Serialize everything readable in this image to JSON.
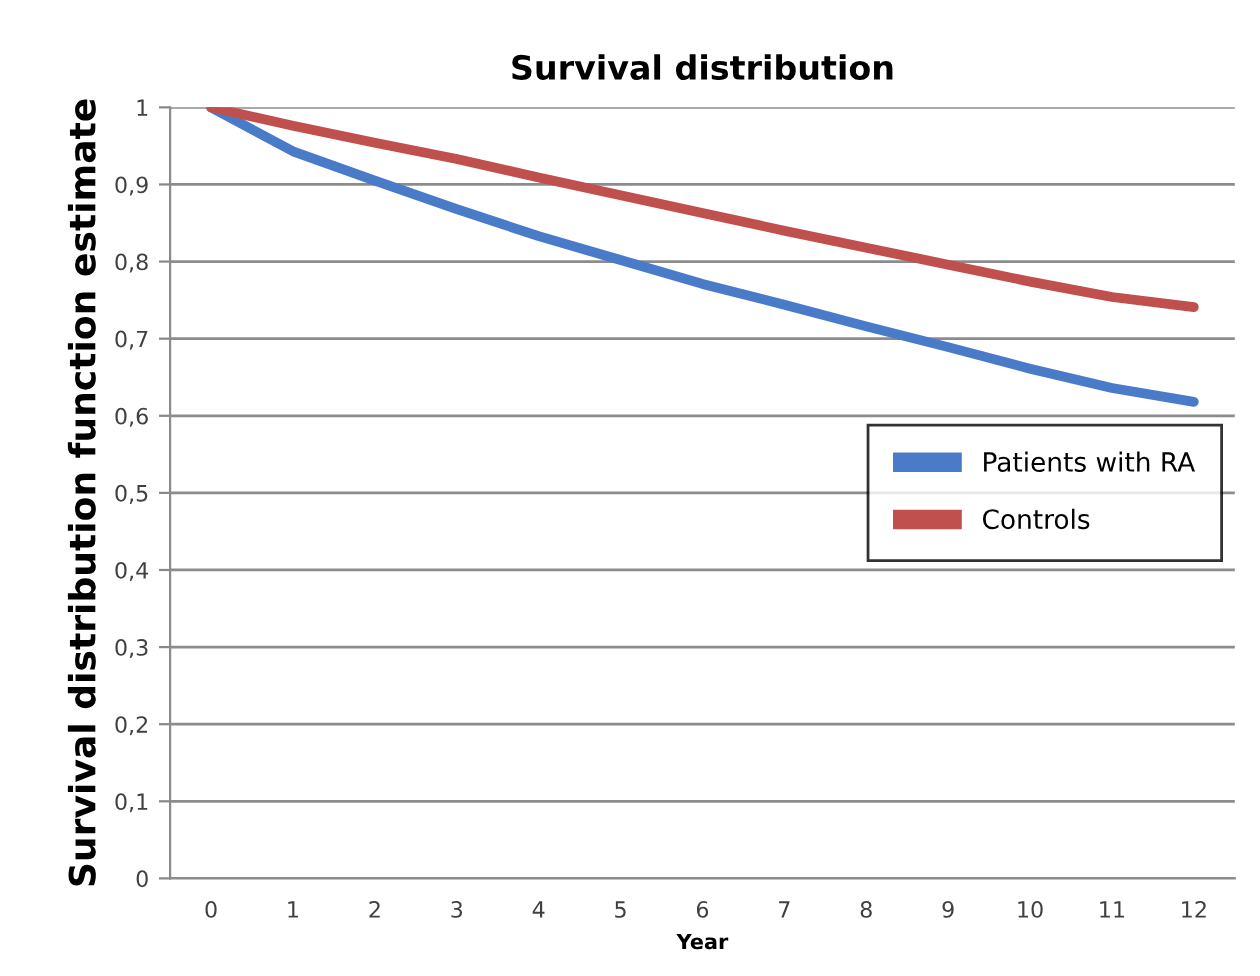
{
  "chart_data": {
    "type": "line",
    "title": "Survival distribution",
    "xlabel": "Year",
    "ylabel": "Survival distribution function estimate",
    "categories": [
      "0",
      "1",
      "2",
      "3",
      "4",
      "5",
      "6",
      "7",
      "8",
      "9",
      "10",
      "11",
      "12"
    ],
    "series": [
      {
        "name": "Patients with RA",
        "color": "#4a7bc8",
        "values": [
          1,
          0.943,
          0.905,
          0.868,
          0.833,
          0.802,
          0.771,
          0.744,
          0.716,
          0.689,
          0.661,
          0.636,
          0.618
        ]
      },
      {
        "name": "Controls",
        "color": "#c0504d",
        "values": [
          1,
          0.976,
          0.954,
          0.933,
          0.909,
          0.886,
          0.863,
          0.84,
          0.818,
          0.796,
          0.774,
          0.754,
          0.741
        ]
      }
    ],
    "ylim": [
      0,
      1
    ],
    "yticks": [
      0,
      {
        "value": 0.1,
        "label": "0,1"
      },
      {
        "value": 0.2,
        "label": "0,2"
      },
      {
        "value": 0.3,
        "label": "0,3"
      },
      {
        "value": 0.4,
        "label": "0,4"
      },
      {
        "value": 0.5,
        "label": "0,5"
      },
      {
        "value": 0.6,
        "label": "0,6"
      },
      {
        "value": 0.7,
        "label": "0,7"
      },
      {
        "value": 0.8,
        "label": "0,8"
      },
      {
        "value": 0.9,
        "label": "0,9"
      },
      1
    ],
    "grid": "y",
    "legend": "right",
    "marker": "none",
    "line_style": "solid"
  }
}
